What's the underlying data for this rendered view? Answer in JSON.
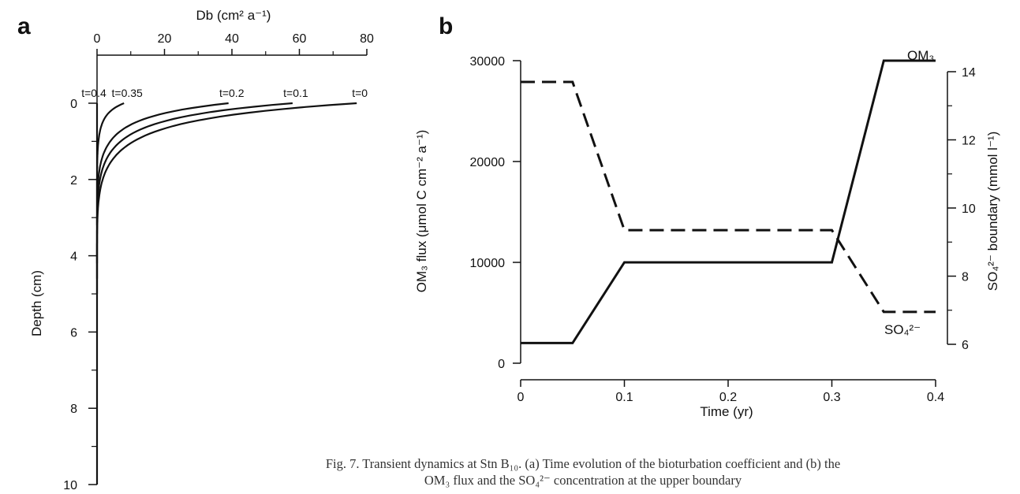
{
  "panels": {
    "a": {
      "letter": "a"
    },
    "b": {
      "letter": "b"
    }
  },
  "chart_data": [
    {
      "type": "line",
      "panel": "a",
      "xlabel": "Db (cm² a⁻¹)",
      "ylabel": "Depth (cm)",
      "x_axis_position": "top",
      "y_axis_inverted": true,
      "xlim": [
        0,
        80
      ],
      "ylim": [
        0,
        10
      ],
      "xticks": [
        0,
        20,
        40,
        60,
        80
      ],
      "yticks": [
        0,
        2,
        4,
        6,
        8,
        10
      ],
      "line_color": "#111111",
      "series": [
        {
          "name": "t=0",
          "Db0": 77,
          "mixing_depth": 5.0
        },
        {
          "name": "t=0.1",
          "Db0": 58,
          "mixing_depth": 4.6
        },
        {
          "name": "t=0.2",
          "Db0": 39,
          "mixing_depth": 4.2
        },
        {
          "name": "t=0.35",
          "Db0": 8,
          "mixing_depth": 3.2
        },
        {
          "name": "t=0.4",
          "Db0": 0,
          "mixing_depth": 10
        }
      ]
    },
    {
      "type": "line",
      "panel": "b",
      "xlabel": "Time (yr)",
      "ylabel_left": "OM₃ flux (μmol C cm⁻² a⁻¹)",
      "ylabel_right": "SO₄²⁻ boundary (mmol l⁻¹)",
      "xlim": [
        0,
        0.4
      ],
      "ylim_left": [
        0,
        30000
      ],
      "ylim_right": [
        6,
        14
      ],
      "xticks": [
        "0",
        "0.1",
        "0.2",
        "0.3",
        "0.4"
      ],
      "yticks_left": [
        "0",
        "10000",
        "20000",
        "30000"
      ],
      "yticks_right": [
        "6",
        "8",
        "10",
        "12",
        "14"
      ],
      "series": [
        {
          "name": "OM₃",
          "axis": "left",
          "style": "solid",
          "color": "#111111",
          "x": [
            0,
            0.05,
            0.1,
            0.3,
            0.35,
            0.4
          ],
          "y": [
            2000,
            2000,
            10000,
            10000,
            30000,
            30000
          ]
        },
        {
          "name": "SO₄²⁻",
          "axis": "right",
          "style": "dashed",
          "color": "#111111",
          "x": [
            0,
            0.05,
            0.1,
            0.3,
            0.35,
            0.4
          ],
          "y": [
            13.7,
            13.7,
            9.35,
            9.35,
            6.95,
            6.95
          ]
        }
      ]
    }
  ],
  "caption": {
    "line1": "Fig. 7. Transient dynamics at Stn B₁₀. (a) Time evolution of the bioturbation coefficient and (b) the",
    "line2": "OM₃ flux and the SO₄²⁻ concentration at the upper boundary"
  }
}
